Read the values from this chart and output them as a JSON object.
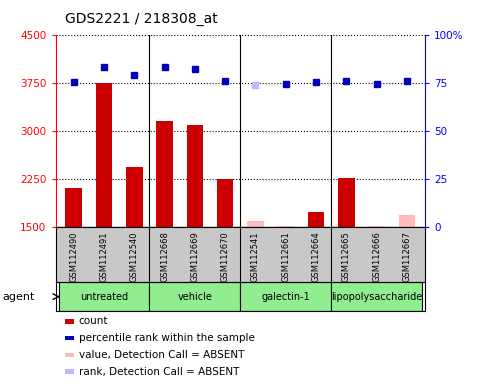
{
  "title": "GDS2221 / 218308_at",
  "samples": [
    "GSM112490",
    "GSM112491",
    "GSM112540",
    "GSM112668",
    "GSM112669",
    "GSM112670",
    "GSM112541",
    "GSM112661",
    "GSM112664",
    "GSM112665",
    "GSM112666",
    "GSM112667"
  ],
  "counts": [
    2100,
    3750,
    2430,
    3150,
    3080,
    2250,
    null,
    null,
    1720,
    2260,
    null,
    null
  ],
  "counts_absent": [
    null,
    null,
    null,
    null,
    null,
    null,
    1580,
    1510,
    null,
    null,
    1515,
    1680
  ],
  "percentile_ranks": [
    75.5,
    83,
    79,
    83,
    82,
    76,
    null,
    74.5,
    75.5,
    76,
    74.5,
    76
  ],
  "percentile_ranks_absent": [
    null,
    null,
    null,
    null,
    null,
    null,
    73.5,
    null,
    null,
    null,
    null,
    null
  ],
  "agents": [
    {
      "label": "untreated",
      "start": 0,
      "end": 3
    },
    {
      "label": "vehicle",
      "start": 3,
      "end": 6
    },
    {
      "label": "galectin-1",
      "start": 6,
      "end": 9
    },
    {
      "label": "lipopolysaccharide",
      "start": 9,
      "end": 12
    }
  ],
  "agent_color": "#90ee90",
  "ylim_left": [
    1500,
    4500
  ],
  "ylim_right": [
    0,
    100
  ],
  "yticks_left": [
    1500,
    2250,
    3000,
    3750,
    4500
  ],
  "yticks_right": [
    0,
    25,
    50,
    75,
    100
  ],
  "bar_color": "#cc0000",
  "bar_absent_color": "#ffbbbb",
  "dot_color": "#0000bb",
  "dot_absent_color": "#bbbbff",
  "sample_bg": "#c8c8c8",
  "chart_bg": "#ffffff"
}
